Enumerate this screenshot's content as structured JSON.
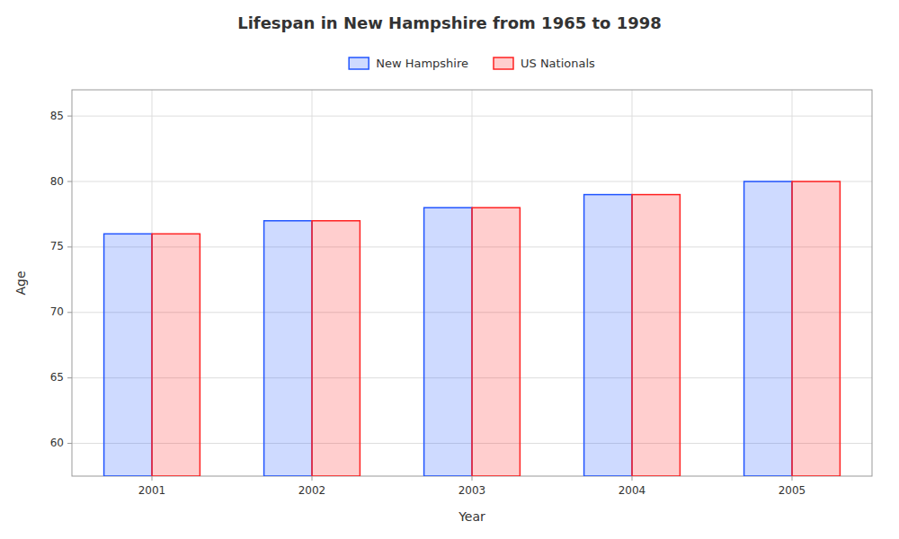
{
  "chart_data": {
    "type": "bar",
    "title": "Lifespan in New Hampshire from 1965 to 1998",
    "x_label": "Year",
    "y_label": "Age",
    "categories": [
      "2001",
      "2002",
      "2003",
      "2004",
      "2005"
    ],
    "series": [
      {
        "name": "New Hampshire",
        "color": "#2255ff",
        "values": [
          76,
          77,
          78,
          79,
          80
        ]
      },
      {
        "name": "US Nationals",
        "color": "#ff2222",
        "values": [
          76,
          77,
          78,
          79,
          80
        ]
      }
    ],
    "ylim": [
      57.5,
      87
    ],
    "yticks": [
      60,
      65,
      70,
      75,
      80,
      85
    ],
    "grid": true,
    "legend": "top"
  }
}
